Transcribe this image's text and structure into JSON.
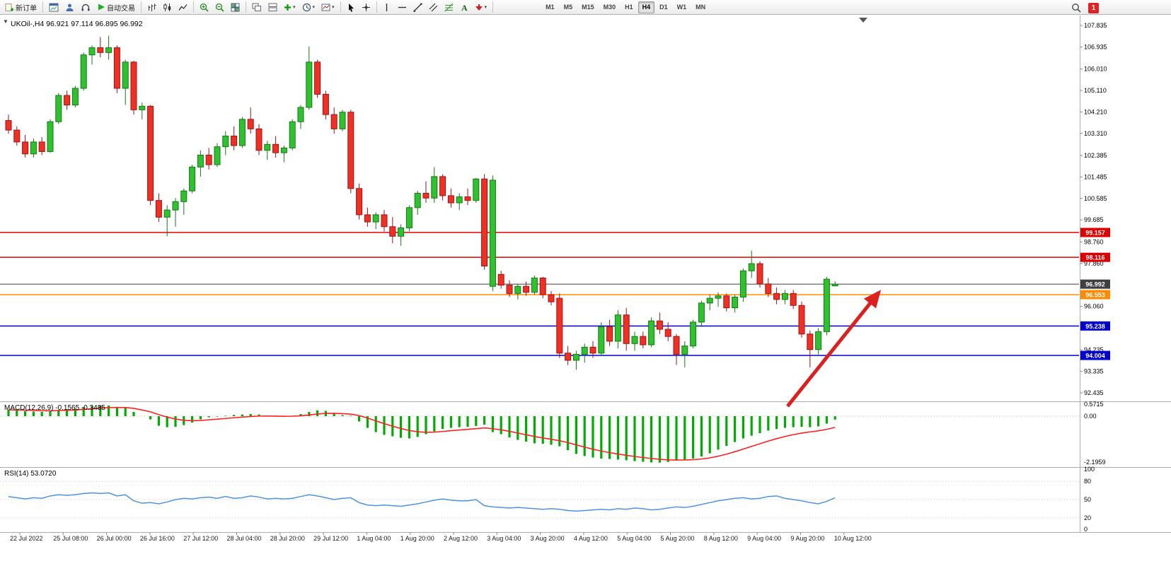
{
  "toolbar": {
    "new_order": "新订单",
    "auto_trading": "自动交易",
    "timeframes": [
      "M1",
      "M5",
      "M15",
      "M30",
      "H1",
      "H4",
      "D1",
      "W1",
      "MN"
    ],
    "active_timeframe": "H4",
    "notification_count": "1"
  },
  "chart_data": {
    "type": "candlestick",
    "symbol": "UKOil-",
    "timeframe": "H4",
    "symbol_line": "UKOil-,H4  96.921 97.114 96.895 96.992",
    "current_bar": {
      "open": 96.921,
      "high": 97.114,
      "low": 96.895,
      "close": 96.992
    },
    "price_axis_labels": [
      "107.835",
      "106.935",
      "106.010",
      "105.110",
      "104.210",
      "103.310",
      "102.385",
      "101.485",
      "100.585",
      "99.685",
      "98.760",
      "97.860",
      "96.060",
      "94.235",
      "93.335",
      "92.435"
    ],
    "levels": [
      {
        "price": 99.157,
        "label": "99.157",
        "color": "#DE0000",
        "current": false
      },
      {
        "price": 98.116,
        "label": "98.116",
        "color": "#DE0000",
        "current": false
      },
      {
        "price": 96.992,
        "label": "96.992",
        "color": "#3F3F3F",
        "current": true
      },
      {
        "price": 96.553,
        "label": "96.553",
        "color": "#FF8A00",
        "current": false
      },
      {
        "price": 95.238,
        "label": "95.238",
        "color": "#0000D0",
        "current": false
      },
      {
        "price": 94.004,
        "label": "94.004",
        "color": "#0000D0",
        "current": false
      }
    ],
    "time_labels": [
      "22 Jul 2022",
      "25 Jul 08:00",
      "26 Jul 00:00",
      "26 Jul 16:00",
      "27 Jul 12:00",
      "28 Jul 04:00",
      "28 Jul 20:00",
      "29 Jul 12:00",
      "1 Aug 04:00",
      "1 Aug 20:00",
      "2 Aug 12:00",
      "3 Aug 04:00",
      "3 Aug 20:00",
      "4 Aug 12:00",
      "5 Aug 04:00",
      "5 Aug 20:00",
      "8 Aug 12:00",
      "9 Aug 04:00",
      "9 Aug 20:00",
      "10 Aug 12:00"
    ],
    "candles": [
      [
        103.85,
        104.1,
        103.3,
        103.45
      ],
      [
        103.45,
        103.6,
        102.8,
        102.95
      ],
      [
        102.95,
        103.25,
        102.3,
        102.45
      ],
      [
        102.45,
        103.1,
        102.3,
        102.95
      ],
      [
        102.95,
        103.15,
        102.4,
        102.55
      ],
      [
        102.55,
        103.9,
        102.5,
        103.8
      ],
      [
        103.8,
        105.0,
        103.7,
        104.9
      ],
      [
        104.9,
        105.1,
        104.3,
        104.5
      ],
      [
        104.5,
        105.3,
        104.4,
        105.2
      ],
      [
        105.2,
        106.7,
        105.1,
        106.6
      ],
      [
        106.6,
        107.0,
        106.2,
        106.9
      ],
      [
        106.9,
        107.35,
        106.5,
        106.7
      ],
      [
        106.7,
        107.4,
        106.4,
        106.9
      ],
      [
        106.9,
        107.0,
        105.0,
        105.2
      ],
      [
        105.2,
        106.4,
        104.5,
        106.3
      ],
      [
        106.3,
        106.35,
        104.1,
        104.3
      ],
      [
        104.3,
        104.6,
        103.9,
        104.45
      ],
      [
        104.45,
        104.5,
        100.3,
        100.5
      ],
      [
        100.5,
        100.8,
        99.6,
        99.8
      ],
      [
        99.8,
        100.3,
        99.0,
        100.1
      ],
      [
        100.1,
        100.6,
        99.4,
        100.45
      ],
      [
        100.45,
        101.0,
        99.9,
        100.9
      ],
      [
        100.9,
        102.0,
        100.8,
        101.9
      ],
      [
        101.9,
        102.6,
        101.5,
        102.4
      ],
      [
        102.4,
        102.7,
        101.8,
        102.0
      ],
      [
        102.0,
        102.9,
        101.9,
        102.75
      ],
      [
        102.75,
        103.4,
        102.4,
        103.2
      ],
      [
        103.2,
        103.6,
        102.6,
        102.8
      ],
      [
        102.8,
        104.0,
        102.7,
        103.9
      ],
      [
        103.9,
        104.4,
        103.3,
        103.5
      ],
      [
        103.5,
        103.7,
        102.4,
        102.6
      ],
      [
        102.6,
        103.0,
        102.2,
        102.85
      ],
      [
        102.85,
        103.2,
        102.3,
        102.5
      ],
      [
        102.5,
        102.8,
        102.1,
        102.7
      ],
      [
        102.7,
        103.9,
        102.6,
        103.8
      ],
      [
        103.8,
        104.5,
        103.5,
        104.4
      ],
      [
        104.4,
        106.95,
        104.3,
        106.3
      ],
      [
        106.3,
        106.4,
        104.8,
        104.95
      ],
      [
        104.95,
        105.1,
        103.9,
        104.1
      ],
      [
        104.1,
        104.4,
        103.3,
        103.5
      ],
      [
        103.5,
        104.3,
        103.4,
        104.2
      ],
      [
        104.2,
        104.3,
        100.8,
        101.0
      ],
      [
        101.0,
        101.2,
        99.7,
        99.9
      ],
      [
        99.9,
        100.2,
        99.4,
        99.6
      ],
      [
        99.6,
        100.0,
        99.3,
        99.9
      ],
      [
        99.9,
        100.1,
        99.2,
        99.4
      ],
      [
        99.4,
        99.8,
        98.7,
        99.0
      ],
      [
        99.0,
        99.5,
        98.6,
        99.35
      ],
      [
        99.35,
        100.3,
        99.2,
        100.2
      ],
      [
        100.2,
        100.9,
        99.9,
        100.8
      ],
      [
        100.8,
        101.3,
        100.4,
        100.6
      ],
      [
        100.6,
        101.9,
        100.4,
        101.5
      ],
      [
        101.5,
        101.6,
        100.5,
        100.7
      ],
      [
        100.7,
        101.0,
        100.2,
        100.4
      ],
      [
        100.4,
        100.8,
        100.1,
        100.65
      ],
      [
        100.65,
        101.0,
        100.3,
        100.5
      ],
      [
        100.5,
        101.45,
        100.4,
        101.4
      ],
      [
        101.4,
        101.6,
        97.6,
        97.75
      ],
      [
        96.9,
        101.55,
        96.7,
        101.35
      ],
      [
        97.4,
        97.55,
        96.8,
        96.95
      ],
      [
        96.95,
        97.15,
        96.45,
        96.6
      ],
      [
        96.6,
        97.0,
        96.35,
        96.9
      ],
      [
        96.9,
        97.1,
        96.5,
        96.65
      ],
      [
        96.65,
        97.35,
        96.55,
        97.25
      ],
      [
        97.25,
        97.3,
        96.4,
        96.55
      ],
      [
        96.55,
        96.7,
        96.1,
        96.25
      ],
      [
        96.4,
        96.6,
        93.9,
        94.1
      ],
      [
        94.1,
        94.4,
        93.6,
        93.8
      ],
      [
        93.8,
        94.2,
        93.4,
        94.05
      ],
      [
        94.05,
        94.5,
        93.7,
        94.35
      ],
      [
        94.35,
        94.6,
        93.9,
        94.1
      ],
      [
        94.1,
        95.4,
        94.0,
        95.2
      ],
      [
        95.2,
        95.5,
        94.4,
        94.6
      ],
      [
        94.6,
        95.9,
        94.3,
        95.7
      ],
      [
        95.7,
        96.0,
        94.2,
        94.5
      ],
      [
        94.5,
        95.0,
        94.2,
        94.8
      ],
      [
        94.8,
        95.0,
        94.3,
        94.45
      ],
      [
        94.45,
        95.6,
        94.35,
        95.45
      ],
      [
        95.45,
        95.8,
        94.9,
        95.1
      ],
      [
        95.1,
        95.4,
        94.6,
        94.8
      ],
      [
        94.8,
        94.9,
        93.6,
        94.05
      ],
      [
        94.05,
        94.6,
        93.5,
        94.4
      ],
      [
        94.4,
        95.5,
        94.3,
        95.4
      ],
      [
        95.4,
        96.3,
        95.2,
        96.2
      ],
      [
        96.2,
        96.55,
        95.9,
        96.4
      ],
      [
        96.4,
        96.65,
        96.05,
        96.5
      ],
      [
        96.5,
        96.6,
        95.85,
        96.0
      ],
      [
        96.0,
        96.55,
        95.8,
        96.45
      ],
      [
        96.45,
        97.65,
        96.25,
        97.55
      ],
      [
        97.55,
        98.4,
        97.25,
        97.85
      ],
      [
        97.85,
        97.95,
        96.85,
        97.0
      ],
      [
        97.0,
        97.25,
        96.45,
        96.6
      ],
      [
        96.6,
        96.85,
        96.15,
        96.35
      ],
      [
        96.35,
        96.75,
        96.15,
        96.6
      ],
      [
        96.6,
        96.75,
        95.95,
        96.1
      ],
      [
        96.1,
        96.25,
        94.75,
        94.9
      ],
      [
        94.9,
        95.05,
        93.5,
        94.25
      ],
      [
        94.25,
        95.15,
        94.05,
        95.0
      ],
      [
        95.0,
        97.3,
        94.85,
        97.2
      ],
      [
        96.92,
        97.11,
        96.9,
        96.99
      ]
    ],
    "macd": {
      "label": "MACD(12,26,9) -0.1565 -0.3485",
      "params": "12,26,9",
      "current": [
        -0.1565,
        -0.3485
      ],
      "axis_labels": [
        "0.5715",
        "0.00",
        "-2.1959"
      ],
      "values": [
        0.3,
        0.27,
        0.24,
        0.22,
        0.2,
        0.24,
        0.3,
        0.33,
        0.36,
        0.43,
        0.48,
        0.5,
        0.5,
        0.44,
        0.4,
        0.2,
        0.0,
        -0.15,
        -0.45,
        -0.52,
        -0.5,
        -0.42,
        -0.3,
        -0.15,
        -0.05,
        -0.02,
        0.02,
        0.06,
        0.08,
        0.1,
        0.08,
        0.02,
        -0.02,
        -0.03,
        0.02,
        0.1,
        0.2,
        0.28,
        0.25,
        0.15,
        0.05,
        0.02,
        -0.25,
        -0.55,
        -0.75,
        -0.88,
        -0.95,
        -1.02,
        -1.05,
        -0.98,
        -0.85,
        -0.72,
        -0.6,
        -0.55,
        -0.52,
        -0.5,
        -0.46,
        -0.4,
        -0.75,
        -0.85,
        -1.0,
        -1.12,
        -1.2,
        -1.28,
        -1.3,
        -1.35,
        -1.42,
        -1.6,
        -1.78,
        -1.88,
        -1.95,
        -2.0,
        -2.02,
        -2.05,
        -2.08,
        -2.12,
        -2.15,
        -2.18,
        -2.19,
        -2.16,
        -2.1,
        -2.05,
        -2.0,
        -1.9,
        -1.75,
        -1.58,
        -1.4,
        -1.22,
        -1.05,
        -0.92,
        -0.8,
        -0.68,
        -0.6,
        -0.55,
        -0.52,
        -0.5,
        -0.52,
        -0.48,
        -0.35,
        -0.16
      ]
    },
    "rsi": {
      "label": "RSI(14) 53.0720",
      "period": 14,
      "current": 53.072,
      "axis_labels": [
        "100",
        "80",
        "50",
        "20",
        "0"
      ],
      "values": [
        55,
        53,
        51,
        53,
        52,
        56,
        58,
        57,
        58,
        60,
        61,
        60,
        61,
        56,
        58,
        48,
        44,
        45,
        43,
        46,
        50,
        52,
        51,
        53,
        54,
        52,
        55,
        52,
        53,
        56,
        54,
        51,
        52,
        51,
        52,
        55,
        58,
        56,
        53,
        50,
        52,
        53,
        45,
        41,
        40,
        41,
        40,
        39,
        41,
        43,
        46,
        49,
        51,
        49,
        48,
        48,
        50,
        40,
        38,
        37,
        36,
        37,
        36,
        35,
        34,
        35,
        34,
        32,
        31,
        32,
        33,
        34,
        33,
        35,
        34,
        36,
        35,
        33,
        34,
        36,
        38,
        37,
        39,
        42,
        45,
        48,
        50,
        52,
        53,
        51,
        52,
        55,
        56,
        52,
        50,
        48,
        45,
        43,
        47,
        53
      ]
    },
    "annotation_arrow": {
      "from": [
        1113,
        553
      ],
      "to": [
        1242,
        392
      ],
      "color": "#DC2020"
    },
    "colors": {
      "bull_fill": "#2FC12F",
      "bull_stroke": "#127A12",
      "bear_fill": "#EE3124",
      "bear_stroke": "#A51010",
      "macd_histogram": "#00AC00",
      "macd_signal": "#FF2020",
      "rsi_line": "#4F92E0",
      "separator": "#ADADAD"
    }
  }
}
